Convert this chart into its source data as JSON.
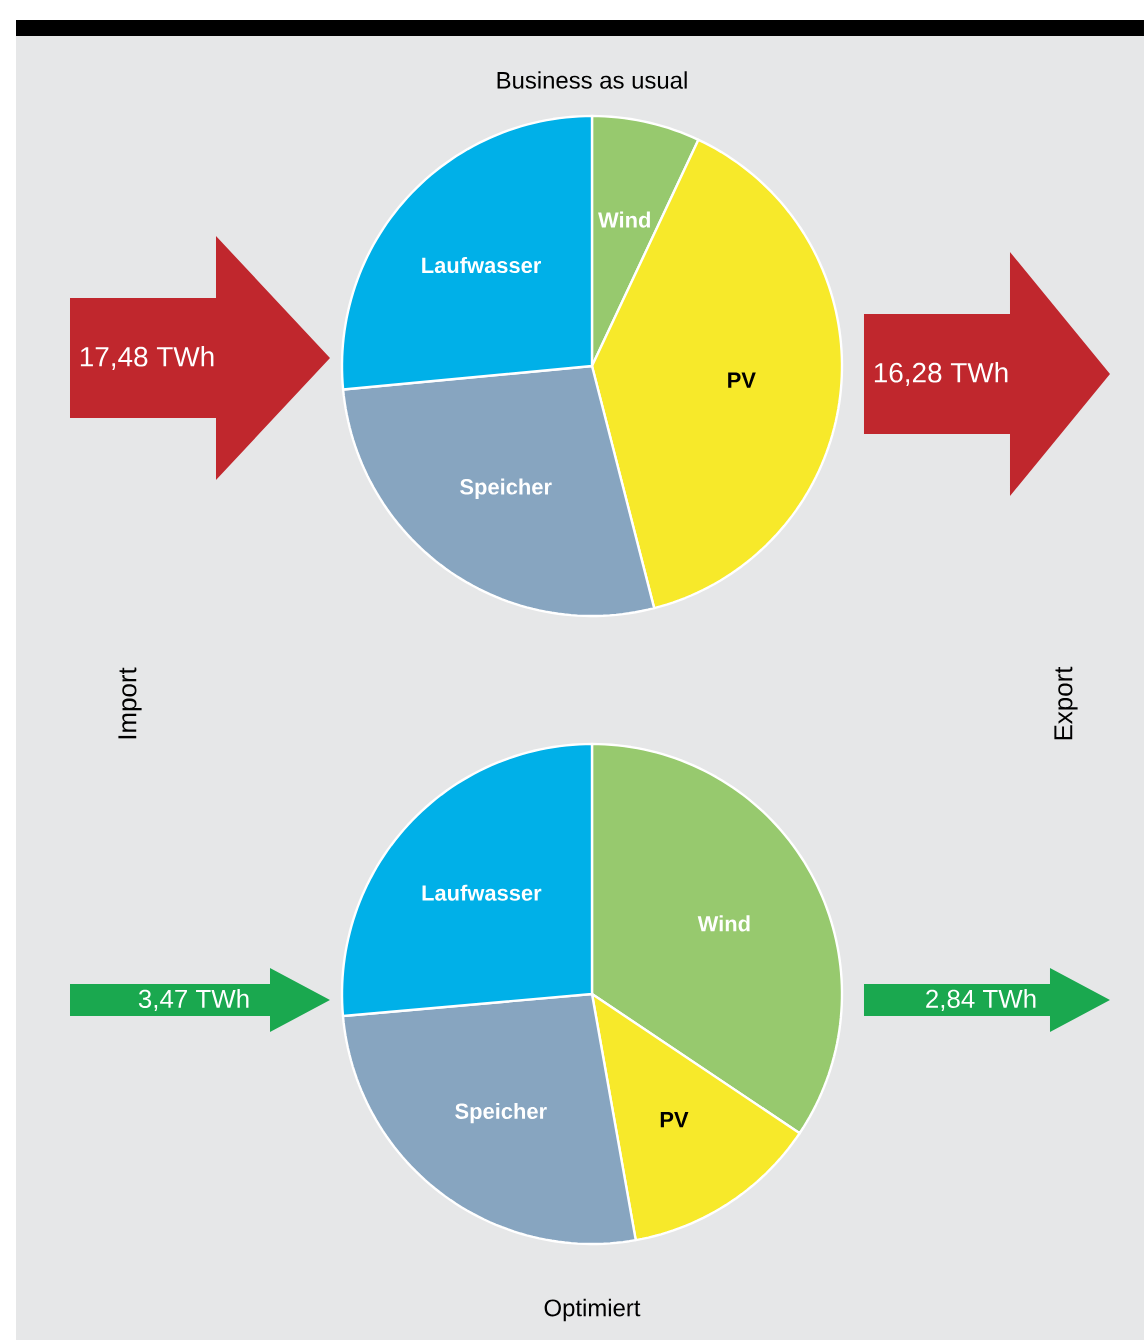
{
  "chart_data": [
    {
      "type": "pie",
      "title": "Business as usual",
      "categories": [
        "Wind",
        "PV",
        "Speicher",
        "Laufwasser"
      ],
      "values": [
        7,
        39,
        27.5,
        26.5
      ],
      "colors": [
        "#97c96e",
        "#f7e92a",
        "#87a5c0",
        "#00b0e8"
      ],
      "annotations": [
        "17,48 TWh",
        "16,28 TWh",
        "Import",
        "Export"
      ]
    },
    {
      "type": "pie",
      "title": "Optimiert",
      "categories": [
        "Wind",
        "PV",
        "Speicher",
        "Laufwasser"
      ],
      "values": [
        34.4,
        12.8,
        26.4,
        26.4
      ],
      "colors": [
        "#97c96e",
        "#f7e92a",
        "#87a5c0",
        "#00b0e8"
      ],
      "annotations": [
        "3,47 TWh",
        "2,84 TWh"
      ]
    }
  ]
}
